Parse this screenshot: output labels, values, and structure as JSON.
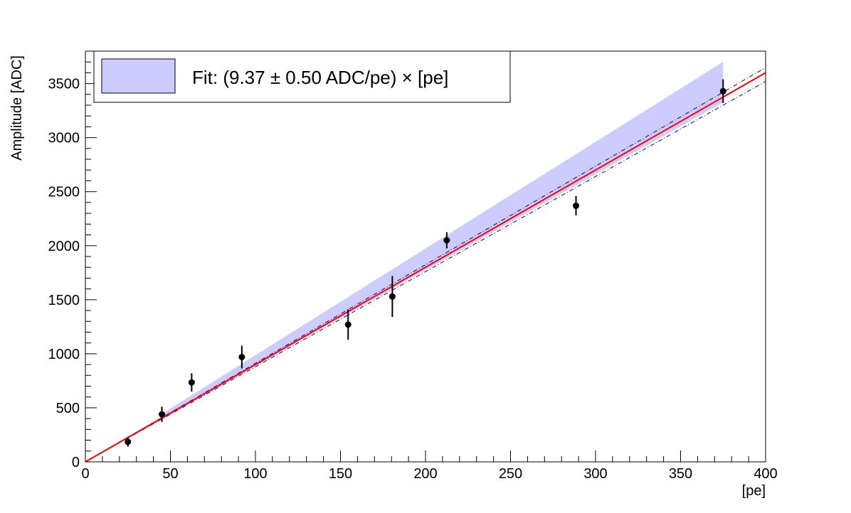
{
  "chart_data": {
    "type": "scatter",
    "xlabel": "[pe]",
    "ylabel": "Amplitude [ADC]",
    "xlim": [
      0,
      400
    ],
    "ylim": [
      0,
      3800
    ],
    "x_ticks": [
      0,
      50,
      100,
      150,
      200,
      250,
      300,
      350,
      400
    ],
    "y_ticks": [
      0,
      500,
      1000,
      1500,
      2000,
      2500,
      3000,
      3500
    ],
    "grid": false,
    "legend_position": "top-left",
    "series": [
      {
        "type": "points_with_errorbars",
        "color": "#000000",
        "points": [
          {
            "x": 25,
            "y": 185,
            "yerr": 45
          },
          {
            "x": 45,
            "y": 440,
            "yerr": 70
          },
          {
            "x": 62.5,
            "y": 735,
            "yerr": 85
          },
          {
            "x": 92,
            "y": 970,
            "yerr": 105
          },
          {
            "x": 154.5,
            "y": 1270,
            "yerr": 140
          },
          {
            "x": 180.5,
            "y": 1530,
            "yerr": 190
          },
          {
            "x": 212.5,
            "y": 2050,
            "yerr": 75
          },
          {
            "x": 288.5,
            "y": 2370,
            "yerr": 90
          },
          {
            "x": 375,
            "y": 3430,
            "yerr": 110
          }
        ]
      },
      {
        "type": "fit_line",
        "color": "#ff0000",
        "slope": 9.0,
        "x_range": [
          0,
          400
        ]
      },
      {
        "type": "fit_band",
        "color": "#000080",
        "slope_low": 8.8,
        "slope_high": 9.12,
        "x_range": [
          0,
          400
        ]
      },
      {
        "type": "legend_band",
        "color": "#ccccff",
        "slope_low": 8.87,
        "slope_high": 9.87,
        "x_range": [
          45,
          375
        ]
      }
    ],
    "legend": {
      "swatch_color": "#ccccff",
      "label": "Fit: (9.37 ± 0.50 ADC/pe) × [pe]"
    }
  }
}
